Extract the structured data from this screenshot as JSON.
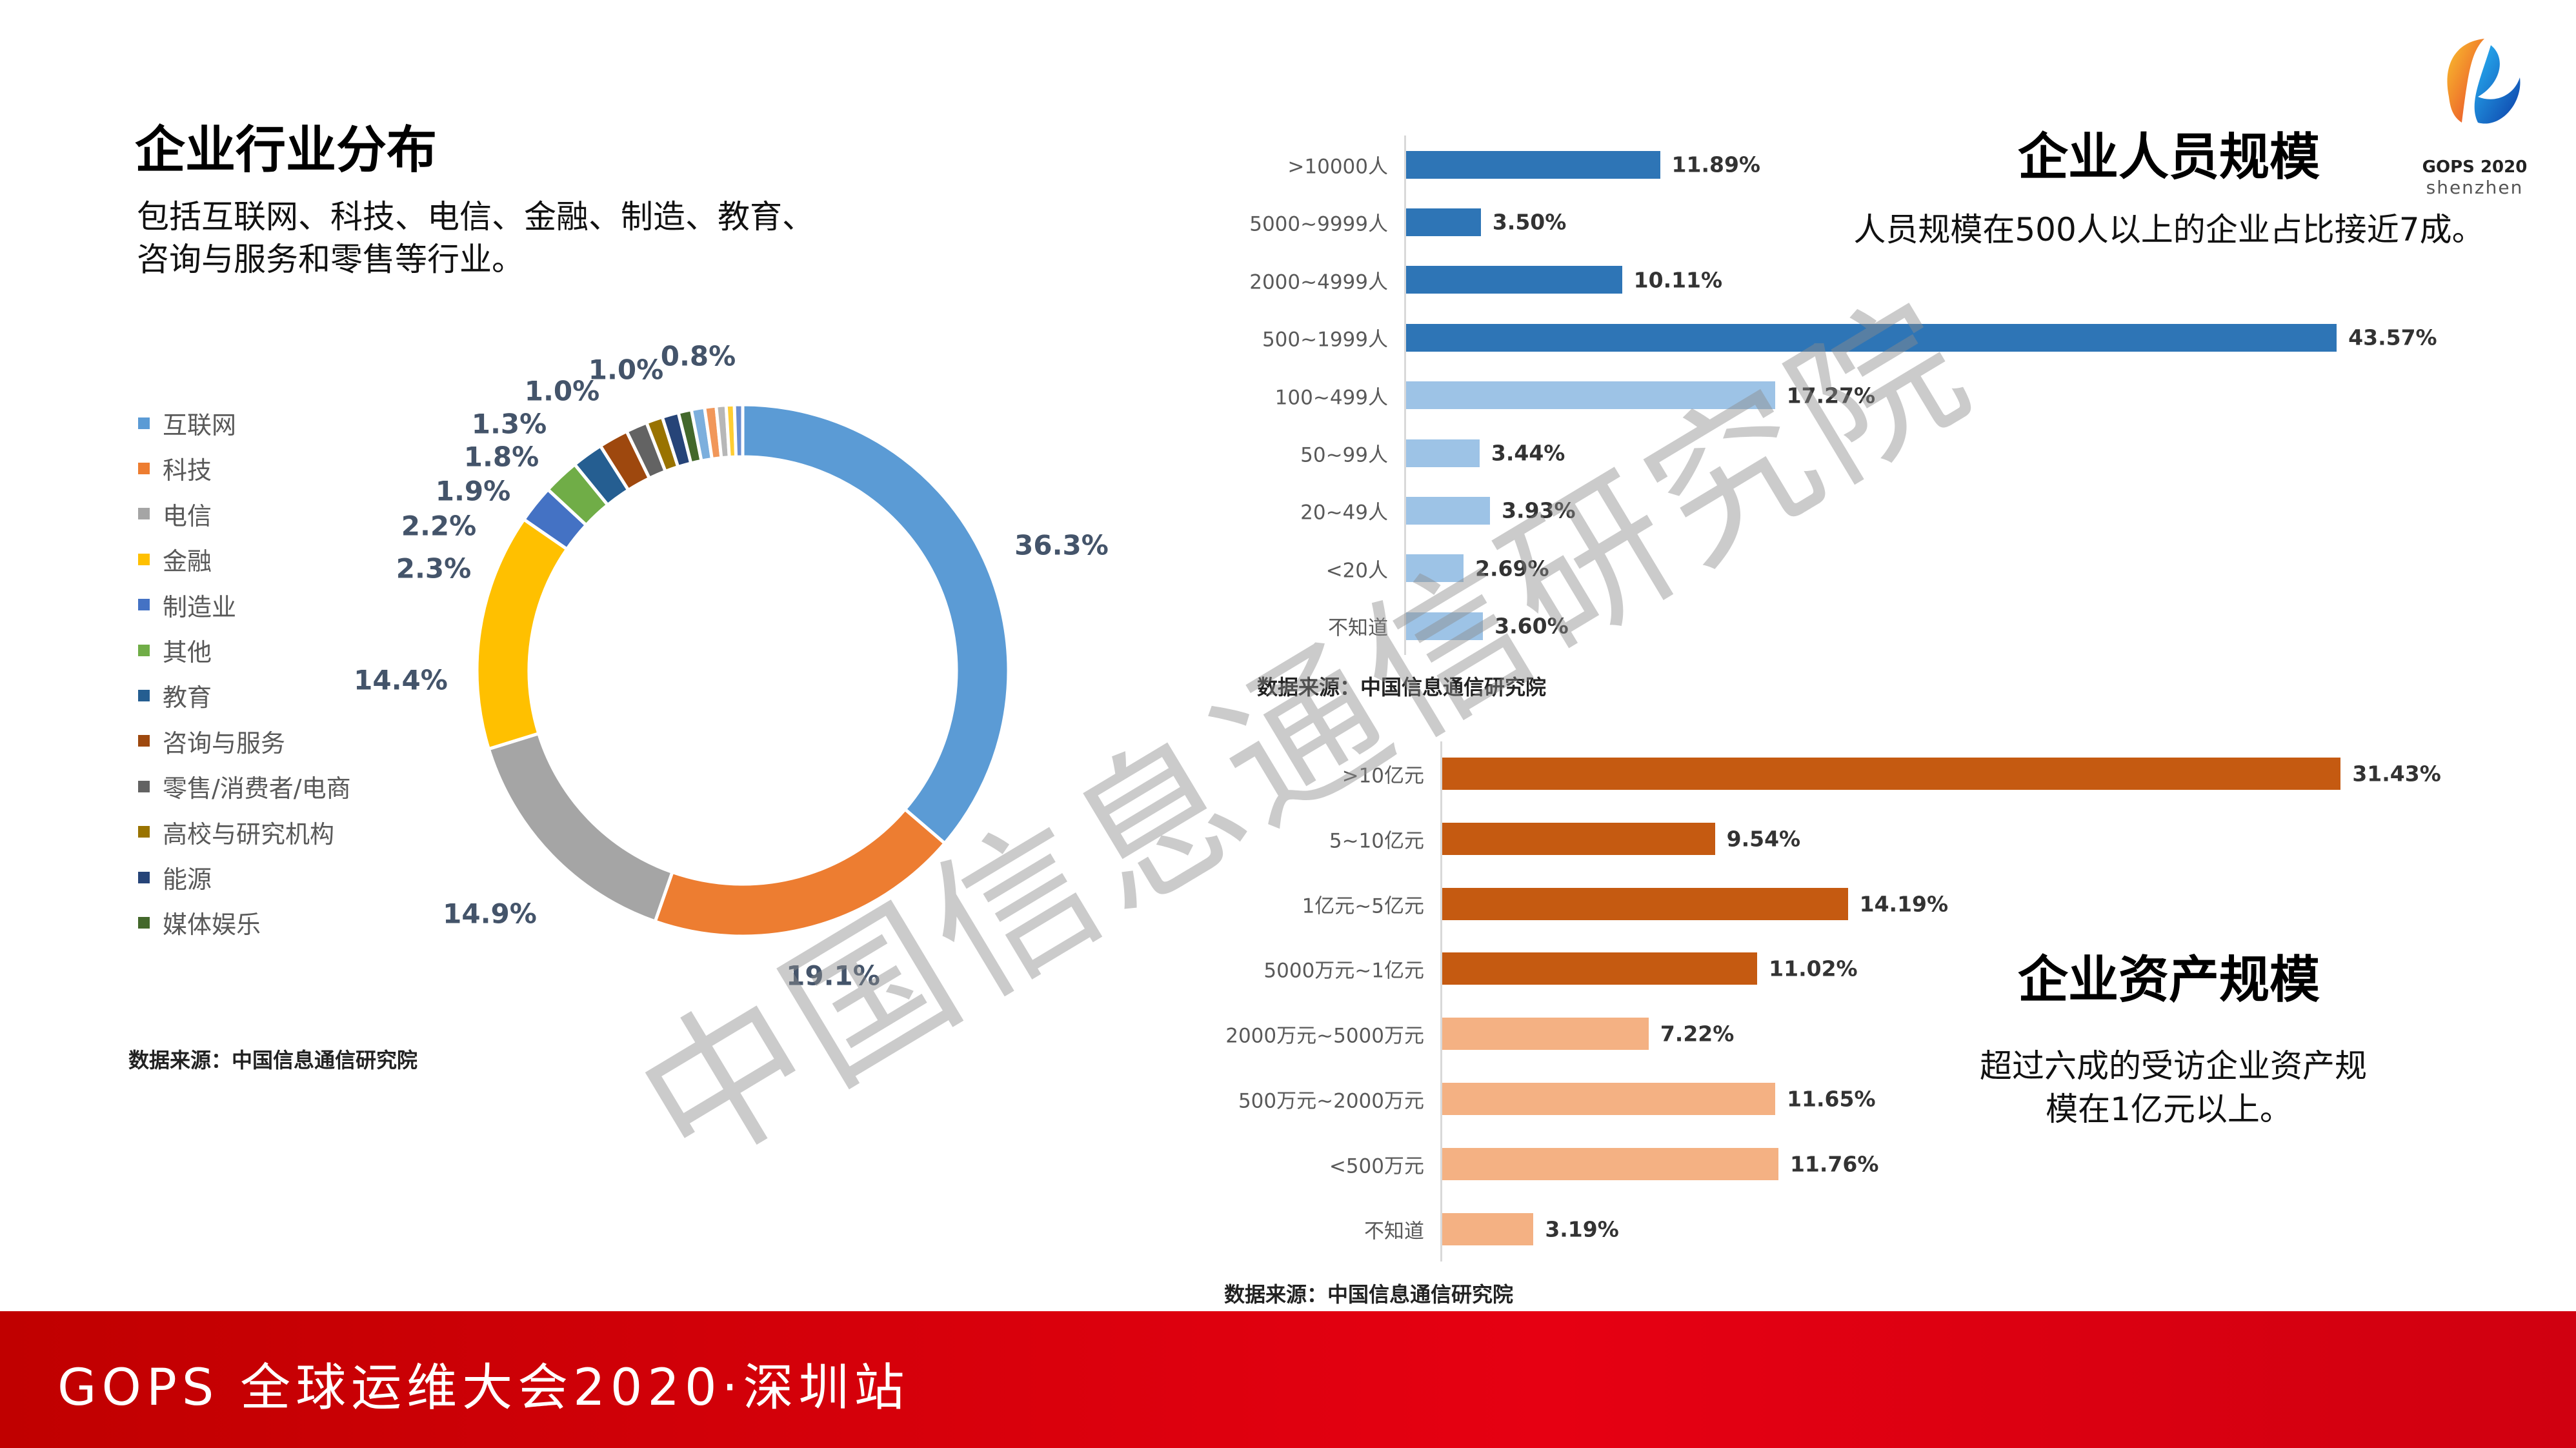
{
  "slide": {
    "industry": {
      "title": "企业行业分布",
      "subtitle_lines": [
        "包括互联网、科技、电信、金融、制造、教育、",
        "咨询与服务和零售等行业。"
      ],
      "source": "数据来源：中国信息通信研究院"
    },
    "people": {
      "title": "企业人员规模",
      "subtitle": "人员规模在500人以上的企业占比接近7成。",
      "source": "数据来源：中国信息通信研究院"
    },
    "assets": {
      "title": "企业资产规模",
      "subtitle_lines": [
        "超过六成的受访企业资产规",
        "模在1亿元以上。"
      ],
      "source": "数据来源：中国信息通信研究院"
    },
    "watermark": "中国信息通信研究院",
    "footer": "GOPS 全球运维大会2020·深圳站",
    "logo": {
      "line1": "GOPS 2020",
      "line2": "shenzhen"
    }
  },
  "chart_data": [
    {
      "type": "pie",
      "variant": "donut",
      "legend_placement": "left",
      "categories": [
        "互联网",
        "科技",
        "电信",
        "金融",
        "制造业",
        "其他",
        "教育",
        "咨询与服务",
        "零售/消费者/电商",
        "高校与研究机构",
        "能源",
        "媒体娱乐",
        "",
        "",
        "",
        "",
        ""
      ],
      "values": [
        36.3,
        19.1,
        14.9,
        14.4,
        2.3,
        2.2,
        1.9,
        1.8,
        1.3,
        1.0,
        1.0,
        0.8,
        0.8,
        0.7,
        0.6,
        0.5,
        0.5
      ],
      "labels": [
        "36.3%",
        "19.1%",
        "14.9%",
        "14.4%",
        "2.3%",
        "2.2%",
        "1.9%",
        "1.8%",
        "1.3%",
        "1.0%",
        "1.0%",
        "0.8%"
      ],
      "colors": [
        "#5b9bd5",
        "#ed7d31",
        "#a5a5a5",
        "#ffc000",
        "#4472c4",
        "#70ad47",
        "#255e91",
        "#9e480e",
        "#636363",
        "#997300",
        "#264478",
        "#43682b",
        "#7cafdd",
        "#f1975a",
        "#b7b7b7",
        "#ffcd33",
        "#698ed0"
      ]
    },
    {
      "type": "bar",
      "orientation": "horizontal",
      "categories": [
        ">10000人",
        "5000~9999人",
        "2000~4999人",
        "500~1999人",
        "100~499人",
        "50~99人",
        "20~49人",
        "<20人",
        "不知道"
      ],
      "values": [
        11.89,
        3.5,
        10.11,
        43.57,
        17.27,
        3.44,
        3.93,
        2.69,
        3.6
      ],
      "labels": [
        "11.89%",
        "3.50%",
        "10.11%",
        "43.57%",
        "17.27%",
        "3.44%",
        "3.93%",
        "2.69%",
        "3.60%"
      ],
      "colors": [
        "#2e75b6",
        "#2e75b6",
        "#2e75b6",
        "#2e75b6",
        "#9dc3e6",
        "#9dc3e6",
        "#9dc3e6",
        "#9dc3e6",
        "#9dc3e6"
      ],
      "grid": false
    },
    {
      "type": "bar",
      "orientation": "horizontal",
      "categories": [
        ">10亿元",
        "5~10亿元",
        "1亿元~5亿元",
        "5000万元~1亿元",
        "2000万元~5000万元",
        "500万元~2000万元",
        "<500万元",
        "不知道"
      ],
      "values": [
        31.43,
        9.54,
        14.19,
        11.02,
        7.22,
        11.65,
        11.76,
        3.19
      ],
      "labels": [
        "31.43%",
        "9.54%",
        "14.19%",
        "11.02%",
        "7.22%",
        "11.65%",
        "11.76%",
        "3.19%"
      ],
      "colors": [
        "#c55a11",
        "#c55a11",
        "#c55a11",
        "#c55a11",
        "#f4b183",
        "#f4b183",
        "#f4b183",
        "#f4b183"
      ],
      "grid": false
    }
  ]
}
